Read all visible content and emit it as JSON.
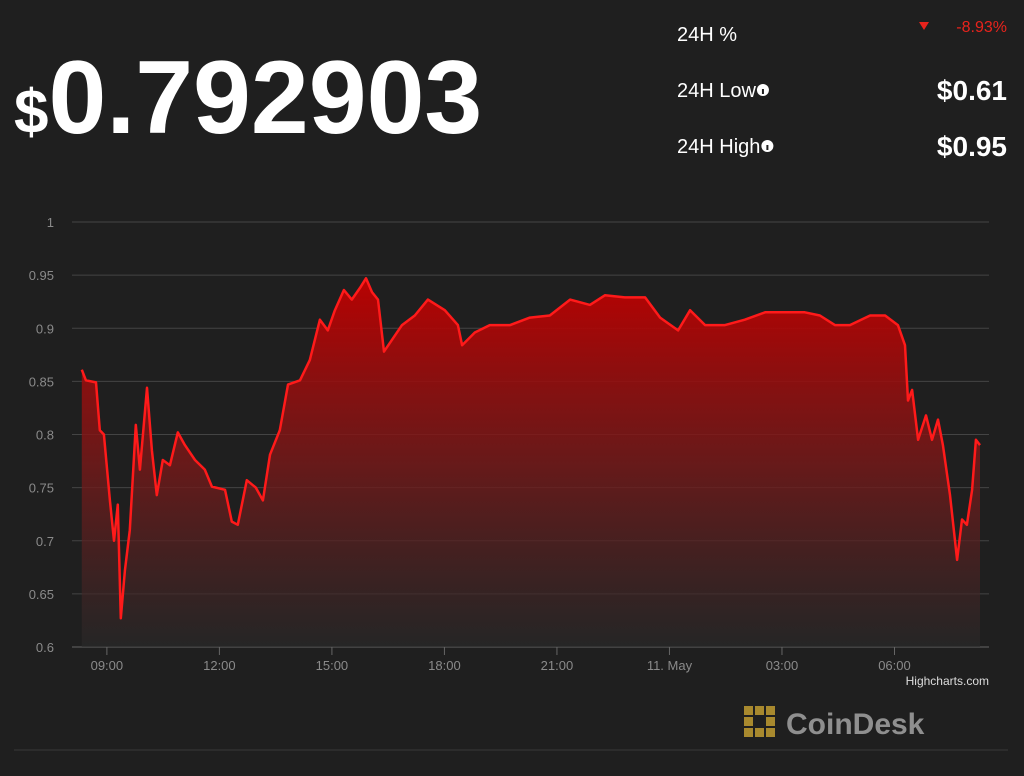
{
  "header": {
    "currency_symbol": "$",
    "price": "0.792903",
    "stats": [
      {
        "label": "24H %",
        "value": "-8.93%"
      },
      {
        "label": "24H Low",
        "value": "$0.61"
      },
      {
        "label": "24H High",
        "value": "$0.95"
      }
    ],
    "brand": "CoinDesk"
  },
  "chart_data": {
    "type": "area",
    "color": "#ff1a1a",
    "grid": true,
    "credit": "Highcharts.com",
    "xlim": [
      8.07,
      32.52
    ],
    "ylim": [
      0.6,
      1
    ],
    "yticks": [
      0.6,
      0.65,
      0.7,
      0.75,
      0.8,
      0.85,
      0.9,
      0.95,
      1
    ],
    "xticks": [
      {
        "value": 9,
        "label": "09:00"
      },
      {
        "value": 12,
        "label": "12:00"
      },
      {
        "value": 15,
        "label": "15:00"
      },
      {
        "value": 18,
        "label": "18:00"
      },
      {
        "value": 21,
        "label": "21:00"
      },
      {
        "value": 24,
        "label": "11. May"
      },
      {
        "value": 27,
        "label": "03:00"
      },
      {
        "value": 30,
        "label": "06:00"
      }
    ],
    "x": [
      8.33,
      8.44,
      8.71,
      8.81,
      8.92,
      9.08,
      9.19,
      9.29,
      9.37,
      9.48,
      9.61,
      9.77,
      9.88,
      10.07,
      10.2,
      10.33,
      10.49,
      10.68,
      10.89,
      11.08,
      11.35,
      11.61,
      11.8,
      12.15,
      12.33,
      12.49,
      12.73,
      12.97,
      13.16,
      13.35,
      13.61,
      13.83,
      14.15,
      14.41,
      14.68,
      14.89,
      15.08,
      15.32,
      15.53,
      15.75,
      15.91,
      16.07,
      16.23,
      16.39,
      16.6,
      16.87,
      17.21,
      17.56,
      18.01,
      18.36,
      18.47,
      18.81,
      19.21,
      19.75,
      20.28,
      20.81,
      21.35,
      21.88,
      22.28,
      22.81,
      23.35,
      23.75,
      24.23,
      24.55,
      24.95,
      25.48,
      26.01,
      26.55,
      27.08,
      27.61,
      28.01,
      28.41,
      28.81,
      29.35,
      29.75,
      30.09,
      30.28,
      30.36,
      30.47,
      30.63,
      30.84,
      31.0,
      31.16,
      31.29,
      31.48,
      31.67,
      31.8,
      31.93,
      32.07,
      32.17,
      32.28
    ],
    "values": [
      0.861,
      0.851,
      0.849,
      0.804,
      0.8,
      0.738,
      0.7,
      0.734,
      0.627,
      0.672,
      0.71,
      0.809,
      0.767,
      0.844,
      0.785,
      0.743,
      0.776,
      0.771,
      0.802,
      0.79,
      0.776,
      0.767,
      0.751,
      0.748,
      0.718,
      0.715,
      0.757,
      0.75,
      0.738,
      0.781,
      0.804,
      0.847,
      0.851,
      0.87,
      0.908,
      0.898,
      0.917,
      0.936,
      0.927,
      0.938,
      0.947,
      0.934,
      0.927,
      0.878,
      0.889,
      0.903,
      0.912,
      0.927,
      0.917,
      0.903,
      0.884,
      0.896,
      0.903,
      0.903,
      0.91,
      0.912,
      0.927,
      0.922,
      0.931,
      0.929,
      0.929,
      0.91,
      0.898,
      0.917,
      0.903,
      0.903,
      0.908,
      0.915,
      0.915,
      0.915,
      0.912,
      0.903,
      0.903,
      0.912,
      0.912,
      0.903,
      0.884,
      0.832,
      0.842,
      0.795,
      0.818,
      0.795,
      0.814,
      0.79,
      0.743,
      0.682,
      0.72,
      0.715,
      0.748,
      0.795,
      0.79
    ]
  }
}
